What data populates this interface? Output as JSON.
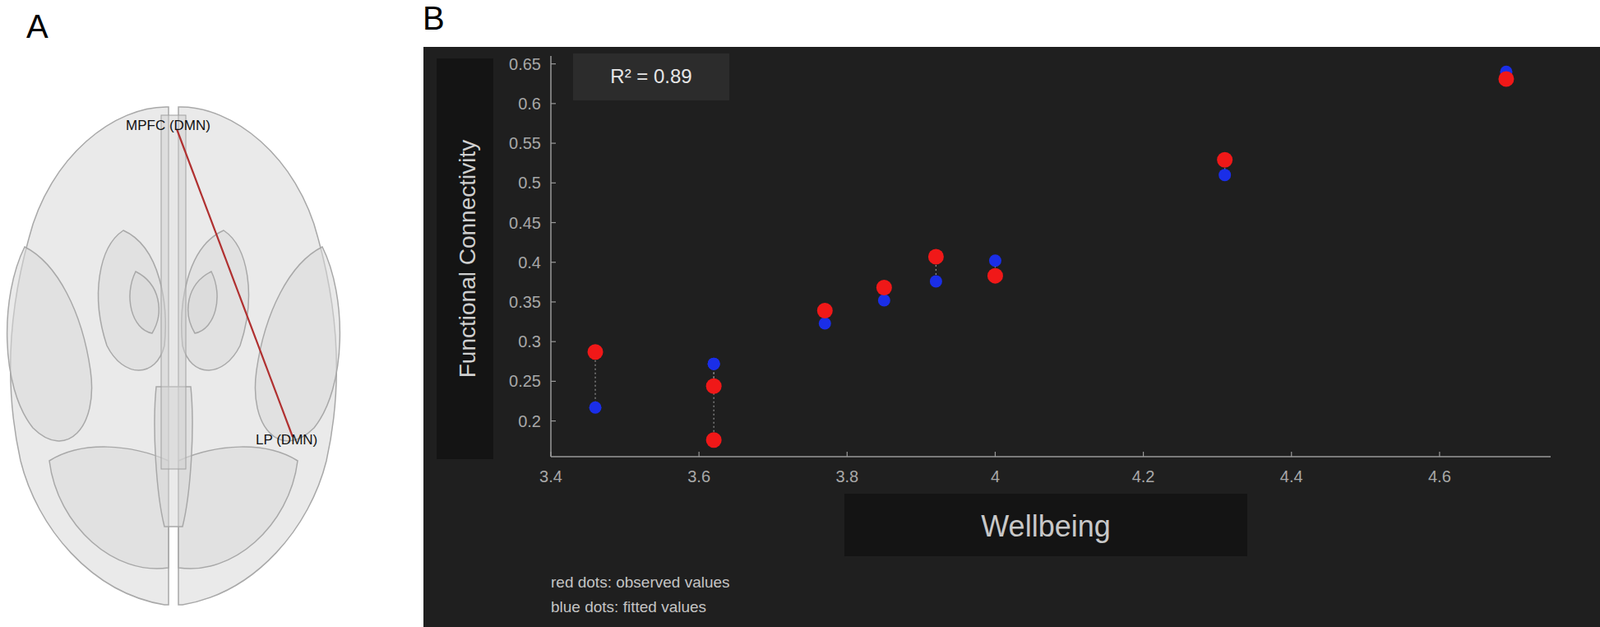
{
  "panels": [
    "A",
    "B"
  ],
  "brain": {
    "nodes": [
      {
        "label": "MPFC (DMN)"
      },
      {
        "label": "LP (DMN)"
      }
    ]
  },
  "chart_data": {
    "type": "scatter",
    "x_label": "Wellbeing",
    "y_label": "Functional Connectivity",
    "annotation": "R² = 0.89",
    "x": [
      3.46,
      3.62,
      3.62,
      3.77,
      3.85,
      3.92,
      4.0,
      4.31,
      4.69
    ],
    "series": [
      {
        "name": "red dots: observed values",
        "color": "#f01818",
        "marker": "circle",
        "values": [
          0.287,
          0.244,
          0.176,
          0.339,
          0.368,
          0.407,
          0.383,
          0.529,
          0.631
        ]
      },
      {
        "name": "blue dots: fitted values",
        "color": "#1a2ee8",
        "marker": "circle",
        "values": [
          0.217,
          0.272,
          0.272,
          0.323,
          0.352,
          0.376,
          0.402,
          0.51,
          0.64
        ]
      }
    ],
    "xlim": [
      3.4,
      4.75
    ],
    "ylim": [
      0.155,
      0.66
    ],
    "xticks": [
      3.4,
      3.6,
      3.8,
      4,
      4.2,
      4.4,
      4.6
    ],
    "yticks": [
      0.2,
      0.25,
      0.3,
      0.35,
      0.4,
      0.45,
      0.5,
      0.55,
      0.6,
      0.65
    ],
    "grid": false
  }
}
